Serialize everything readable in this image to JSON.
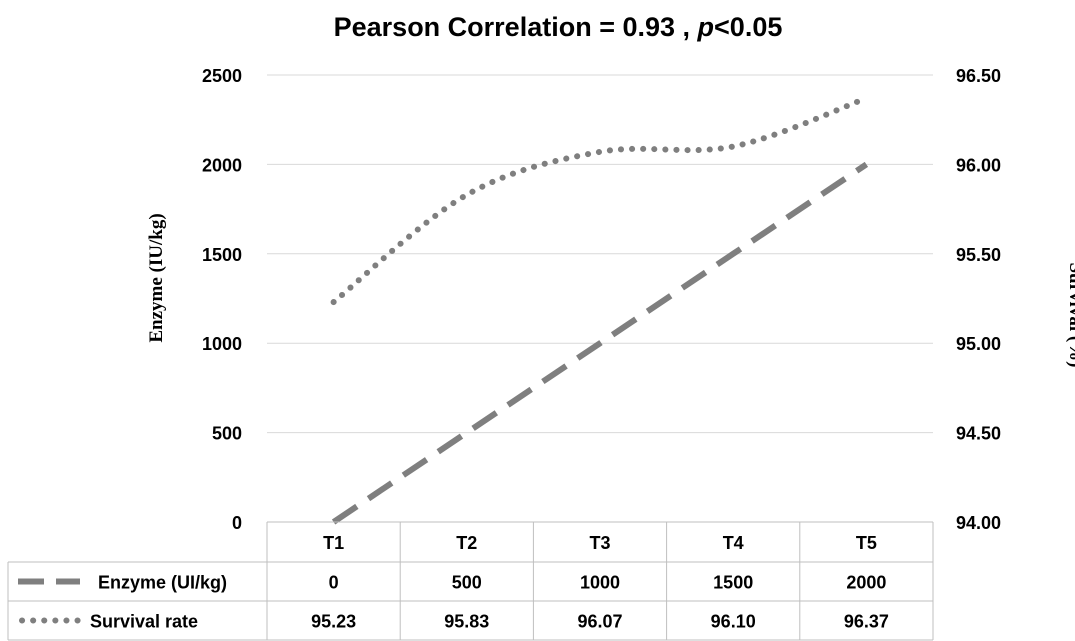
{
  "chart_data": {
    "type": "line",
    "title_prefix": "Pearson Correlation = 0.93 , ",
    "title_italic": "p",
    "title_suffix": "<0.05",
    "ylabel": "Enzyme (IU/kg)",
    "ylabel_right": "Survival (%)",
    "categories": [
      "T1",
      "T2",
      "T3",
      "T4",
      "T5"
    ],
    "ylim": [
      0,
      2500
    ],
    "yticks": [
      "0",
      "500",
      "1000",
      "1500",
      "2000",
      "2500"
    ],
    "ylim_right": [
      94.0,
      96.5
    ],
    "yticks_right": [
      "94.00",
      "94.50",
      "95.00",
      "95.50",
      "96.00",
      "96.50"
    ],
    "series": [
      {
        "name": "Enzyme (UI/kg)",
        "axis": "left",
        "style": "dashed",
        "color": "#7f7f7f",
        "values": [
          0,
          500,
          1000,
          1500,
          2000
        ],
        "labels": [
          "0",
          "500",
          "1000",
          "1500",
          "2000"
        ]
      },
      {
        "name": "Survival rate",
        "axis": "right",
        "style": "dotted",
        "color": "#7f7f7f",
        "values": [
          95.23,
          95.83,
          96.07,
          96.1,
          96.37
        ],
        "labels": [
          "95.23",
          "95.83",
          "96.07",
          "96.10",
          "96.37"
        ]
      }
    ],
    "grid": true,
    "legend": "data-table-bottom"
  }
}
